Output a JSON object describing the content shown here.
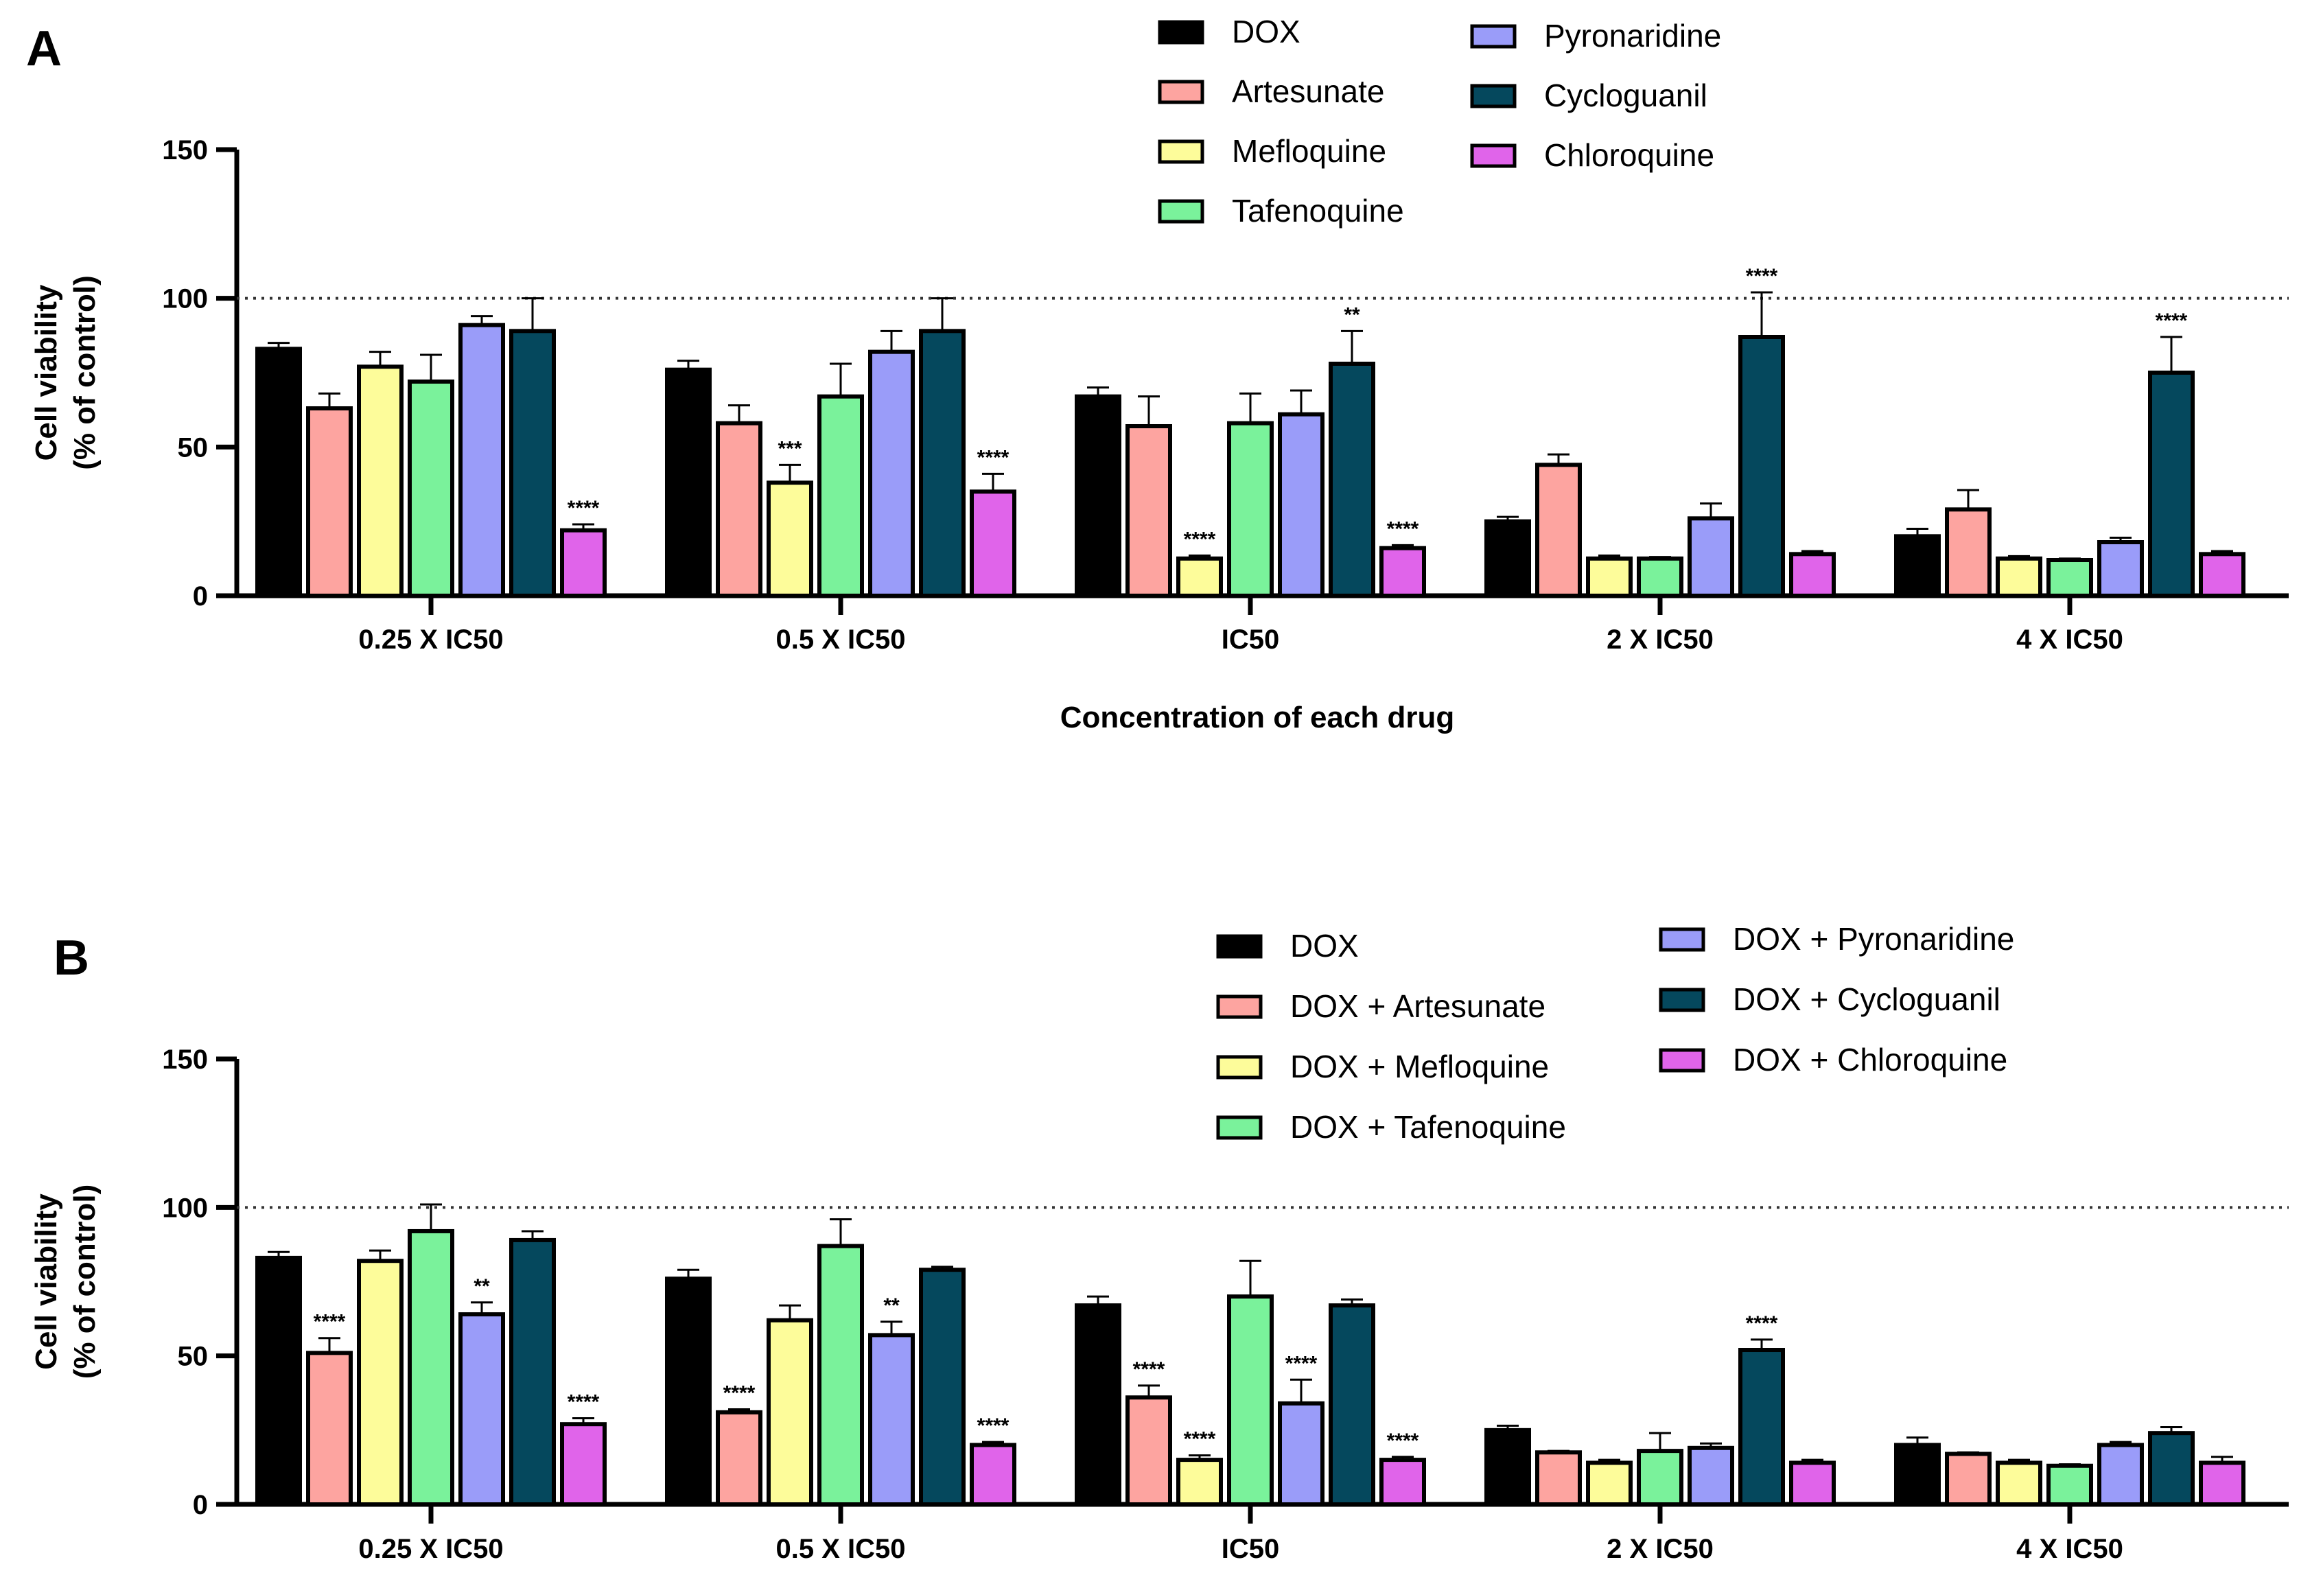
{
  "chart_data": [
    {
      "type": "bar",
      "panel": "A",
      "ylabel": [
        "Cell viability",
        "(% of control)"
      ],
      "xlabel": "Concentration of each drug",
      "ylim": [
        0,
        150
      ],
      "yticks": [
        0,
        50,
        100,
        150
      ],
      "reference_line": 100,
      "categories": [
        "0.25 X IC50",
        "0.5 X IC50",
        "IC50",
        "2 X IC50",
        "4 X IC50"
      ],
      "legend_columns": [
        [
          0,
          1,
          2,
          3
        ],
        [
          4,
          5,
          6
        ]
      ],
      "series": [
        {
          "name": "DOX",
          "color": "#000000",
          "values": [
            83,
            76,
            67,
            25,
            20
          ],
          "errors": [
            2,
            3,
            3,
            1.5,
            2.5
          ],
          "sig": [
            "",
            "",
            "",
            "",
            ""
          ]
        },
        {
          "name": "Artesunate",
          "color": "#fda4a0",
          "values": [
            63,
            58,
            57,
            44,
            29
          ],
          "errors": [
            5,
            6,
            10,
            3.5,
            6.5
          ],
          "sig": [
            "",
            "",
            "",
            "",
            ""
          ]
        },
        {
          "name": "Mefloquine",
          "color": "#fdfc9a",
          "values": [
            77,
            38,
            12.5,
            12.5,
            12.5
          ],
          "errors": [
            5,
            6,
            1,
            1,
            0.8
          ],
          "sig": [
            "",
            "***",
            "****",
            "",
            ""
          ]
        },
        {
          "name": "Tafenoquine",
          "color": "#7af29b",
          "values": [
            72,
            67,
            58,
            12.5,
            12
          ],
          "errors": [
            9,
            11,
            10,
            0.5,
            0.5
          ],
          "sig": [
            "",
            "",
            "",
            "",
            ""
          ]
        },
        {
          "name": "Pyronaridine",
          "color": "#9a9cf9",
          "values": [
            91,
            82,
            61,
            26,
            18
          ],
          "errors": [
            3,
            7,
            8,
            5,
            1.5
          ],
          "sig": [
            "",
            "",
            "",
            "",
            ""
          ]
        },
        {
          "name": "Cycloguanil",
          "color": "#05485d",
          "values": [
            89,
            89,
            78,
            87,
            75
          ],
          "errors": [
            11,
            11,
            11,
            15,
            12
          ],
          "sig": [
            "",
            "",
            "**",
            "****",
            "****"
          ]
        },
        {
          "name": "Chloroquine",
          "color": "#e064ea",
          "values": [
            22,
            35,
            16,
            14,
            14
          ],
          "errors": [
            2,
            6,
            1,
            1,
            1
          ],
          "sig": [
            "****",
            "****",
            "****",
            "",
            ""
          ]
        }
      ]
    },
    {
      "type": "bar",
      "panel": "B",
      "ylabel": [
        "Cell viability",
        "(% of control)"
      ],
      "xlabel": "",
      "ylim": [
        0,
        150
      ],
      "yticks": [
        0,
        50,
        100,
        150
      ],
      "reference_line": 100,
      "categories": [
        "0.25 X IC50",
        "0.5 X IC50",
        "IC50",
        "2 X IC50",
        "4 X IC50"
      ],
      "legend_columns": [
        [
          0,
          1,
          2,
          3
        ],
        [
          4,
          5,
          6
        ]
      ],
      "series": [
        {
          "name": "DOX",
          "color": "#000000",
          "values": [
            83,
            76,
            67,
            25,
            20
          ],
          "errors": [
            2,
            3,
            3,
            1.5,
            2.5
          ],
          "sig": [
            "",
            "",
            "",
            "",
            ""
          ]
        },
        {
          "name": "DOX + Artesunate",
          "color": "#fda4a0",
          "values": [
            51,
            31,
            36,
            17.5,
            17
          ],
          "errors": [
            5,
            1,
            4,
            0.5,
            0.5
          ],
          "sig": [
            "****",
            "****",
            "****",
            "",
            ""
          ]
        },
        {
          "name": "DOX + Mefloquine",
          "color": "#fdfc9a",
          "values": [
            82,
            62,
            15,
            14,
            14
          ],
          "errors": [
            3.5,
            5,
            1.5,
            1,
            1
          ],
          "sig": [
            "",
            "",
            "****",
            "",
            ""
          ]
        },
        {
          "name": "DOX + Tafenoquine",
          "color": "#7af29b",
          "values": [
            92,
            87,
            70,
            18,
            13
          ],
          "errors": [
            9,
            9,
            12,
            6,
            0.5
          ],
          "sig": [
            "",
            "",
            "",
            "",
            ""
          ]
        },
        {
          "name": "DOX + Pyronaridine",
          "color": "#9a9cf9",
          "values": [
            64,
            57,
            34,
            19,
            20
          ],
          "errors": [
            4,
            4.5,
            8,
            1.5,
            1
          ],
          "sig": [
            "**",
            "**",
            "****",
            "",
            ""
          ]
        },
        {
          "name": "DOX + Cycloguanil",
          "color": "#05485d",
          "values": [
            89,
            79,
            67,
            52,
            24
          ],
          "errors": [
            3,
            1,
            2,
            3.5,
            2
          ],
          "sig": [
            "",
            "",
            "",
            "****",
            ""
          ]
        },
        {
          "name": "DOX + Chloroquine",
          "color": "#e064ea",
          "values": [
            27,
            20,
            15,
            14,
            14
          ],
          "errors": [
            2,
            1,
            1,
            1,
            2
          ],
          "sig": [
            "****",
            "****",
            "****",
            "",
            ""
          ]
        }
      ]
    }
  ]
}
